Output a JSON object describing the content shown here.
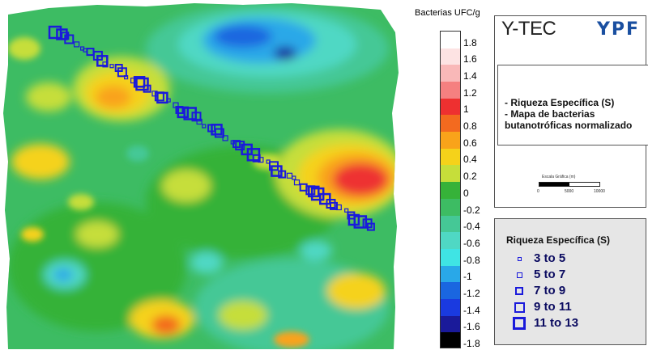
{
  "color_scale": {
    "title": "Bacterias UFC/g",
    "labels": [
      "1.8",
      "1.6",
      "1.4",
      "1.2",
      "1",
      "0.8",
      "0.6",
      "0.4",
      "0.2",
      "0",
      "-0.2",
      "-0.4",
      "-0.6",
      "-0.8",
      "-1",
      "-1.2",
      "-1.4",
      "-1.6",
      "-1.8"
    ],
    "colors": [
      "#ffffff",
      "#fde3e3",
      "#f9b8b8",
      "#f58080",
      "#ee3030",
      "#f36a1f",
      "#f9a31a",
      "#f5d21a",
      "#c6de3a",
      "#36b239",
      "#3dbc63",
      "#45c896",
      "#4fd8c4",
      "#3fe4e4",
      "#29a8e8",
      "#1a66e0",
      "#1a3ae0",
      "#1a1a9a",
      "#000000"
    ]
  },
  "header": {
    "company": "Y-TEC",
    "brand": "YPF"
  },
  "description": {
    "lines": [
      "- Riqueza Específica (S)",
      "- Mapa de bacterias",
      "butanotróficas normalizado"
    ]
  },
  "scale_bar": {
    "label": "Escala Gráfica (m)",
    "ticks": [
      "0",
      "5000",
      "10000"
    ]
  },
  "legend": {
    "title": "Riqueza Específica (S)",
    "items": [
      {
        "label": "3  to  5",
        "size": 3,
        "stroke": 1
      },
      {
        "label": "5  to  7",
        "size": 5,
        "stroke": 1
      },
      {
        "label": "7  to  9",
        "size": 8,
        "stroke": 2
      },
      {
        "label": "9  to  11",
        "size": 11,
        "stroke": 2
      },
      {
        "label": "11  to  13",
        "size": 14,
        "stroke": 3
      }
    ]
  },
  "colors": {
    "symbol": "#1a1adb",
    "text_dark": "#0b0b60",
    "brand": "#1a4fa0"
  }
}
